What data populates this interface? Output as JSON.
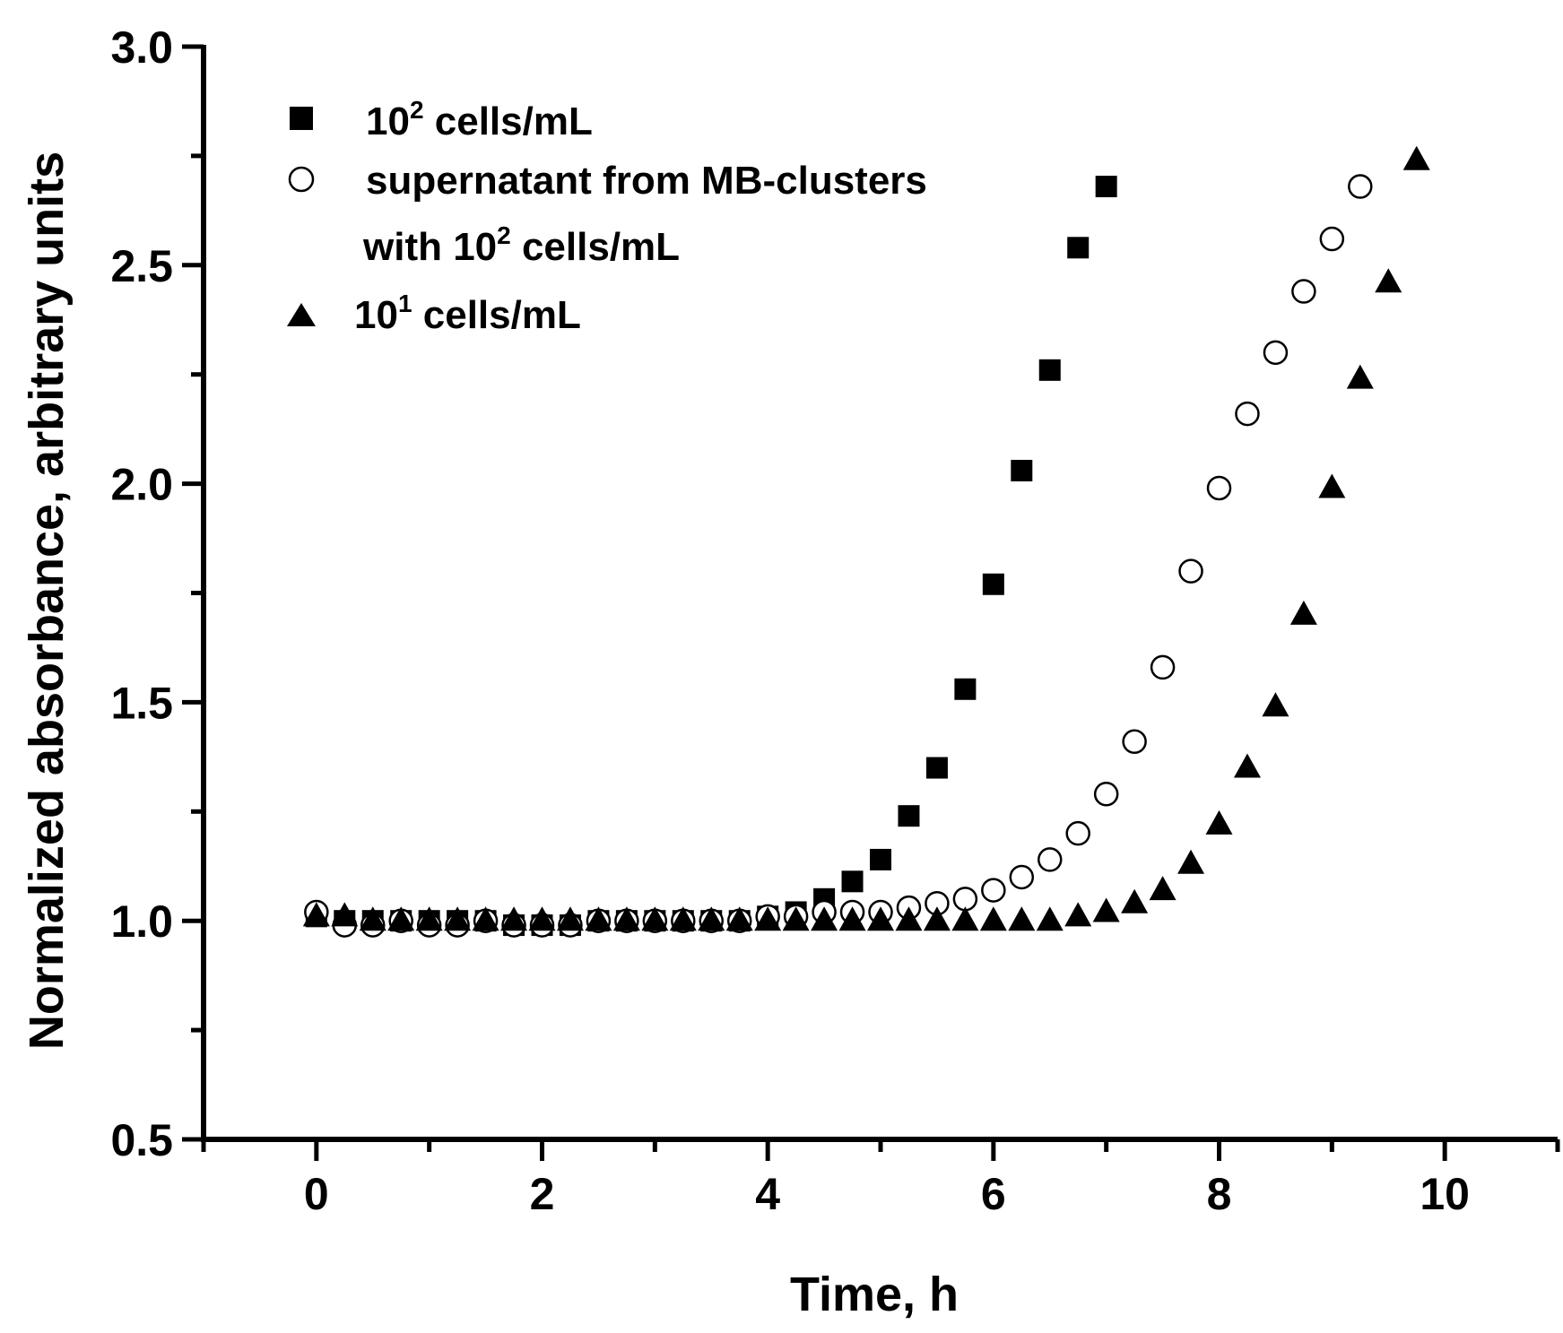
{
  "chart_data": {
    "type": "scatter",
    "title": "",
    "xlabel": "Time, h",
    "ylabel": "Normalized absorbance, arbitrary units",
    "xlim": [
      -1,
      11
    ],
    "ylim": [
      0.5,
      3.0
    ],
    "xticks": [
      0,
      2,
      4,
      6,
      8,
      10
    ],
    "xtick_labels": [
      "0",
      "2",
      "4",
      "6",
      "8",
      "10"
    ],
    "yticks": [
      0.5,
      1.0,
      1.5,
      2.0,
      2.5,
      3.0
    ],
    "ytick_labels": [
      "0.5",
      "1.0",
      "1.5",
      "2.0",
      "2.5",
      "3.0"
    ],
    "grid": false,
    "legend_position": "top-left",
    "series": [
      {
        "name": "10^2 cells/mL",
        "label_base": "10",
        "label_sup": "2",
        "label_rest": " cells/mL",
        "marker": "filled-square",
        "x": [
          0,
          0.25,
          0.5,
          0.75,
          1,
          1.25,
          1.5,
          1.75,
          2,
          2.25,
          2.5,
          2.75,
          3,
          3.25,
          3.5,
          3.75,
          4,
          4.25,
          4.5,
          4.75,
          5,
          5.25,
          5.5,
          5.75,
          6,
          6.25,
          6.5,
          6.75,
          7
        ],
        "y": [
          1.01,
          1.0,
          1.0,
          1.0,
          1.0,
          1.0,
          1.0,
          0.99,
          0.99,
          0.99,
          1.0,
          1.0,
          1.0,
          1.0,
          1.0,
          1.0,
          1.01,
          1.02,
          1.05,
          1.09,
          1.14,
          1.24,
          1.35,
          1.53,
          1.77,
          2.03,
          2.26,
          2.54,
          2.68
        ]
      },
      {
        "name": "supernatant from MB-clusters with 10^2 cells/mL",
        "label_line1": "supernatant from MB-clusters",
        "label_line2_base": "with 10",
        "label_line2_sup": "2",
        "label_line2_rest": " cells/mL",
        "marker": "open-circle",
        "x": [
          0,
          0.25,
          0.5,
          0.75,
          1,
          1.25,
          1.5,
          1.75,
          2,
          2.25,
          2.5,
          2.75,
          3,
          3.25,
          3.5,
          3.75,
          4,
          4.25,
          4.5,
          4.75,
          5,
          5.25,
          5.5,
          5.75,
          6,
          6.25,
          6.5,
          6.75,
          7,
          7.25,
          7.5,
          7.75,
          8,
          8.25,
          8.5,
          8.75,
          9,
          9.25
        ],
        "y": [
          1.02,
          0.99,
          0.99,
          1.0,
          0.99,
          0.99,
          1.0,
          0.99,
          0.99,
          0.99,
          1.0,
          1.0,
          1.0,
          1.0,
          1.0,
          1.0,
          1.01,
          1.01,
          1.02,
          1.02,
          1.02,
          1.03,
          1.04,
          1.05,
          1.07,
          1.1,
          1.14,
          1.2,
          1.29,
          1.41,
          1.58,
          1.8,
          1.99,
          2.16,
          2.3,
          2.44,
          2.56,
          2.68
        ]
      },
      {
        "name": "10^1 cells/mL",
        "label_base": "10",
        "label_sup": "1",
        "label_rest": " cells/mL",
        "marker": "filled-triangle",
        "x": [
          0,
          0.25,
          0.5,
          0.75,
          1,
          1.25,
          1.5,
          1.75,
          2,
          2.25,
          2.5,
          2.75,
          3,
          3.25,
          3.5,
          3.75,
          4,
          4.25,
          4.5,
          4.75,
          5,
          5.25,
          5.5,
          5.75,
          6,
          6.25,
          6.5,
          6.75,
          7,
          7.25,
          7.5,
          7.75,
          8,
          8.25,
          8.5,
          8.75,
          9,
          9.25,
          9.5,
          9.75
        ],
        "y": [
          1.01,
          1.01,
          1.0,
          1.0,
          1.0,
          1.0,
          1.0,
          1.0,
          1.0,
          1.0,
          1.0,
          1.0,
          1.0,
          1.0,
          1.0,
          1.0,
          1.0,
          1.0,
          1.0,
          1.0,
          1.0,
          1.0,
          1.0,
          1.0,
          1.0,
          1.0,
          1.0,
          1.01,
          1.02,
          1.04,
          1.07,
          1.13,
          1.22,
          1.35,
          1.49,
          1.7,
          1.99,
          2.24,
          2.46,
          2.74
        ]
      }
    ]
  }
}
